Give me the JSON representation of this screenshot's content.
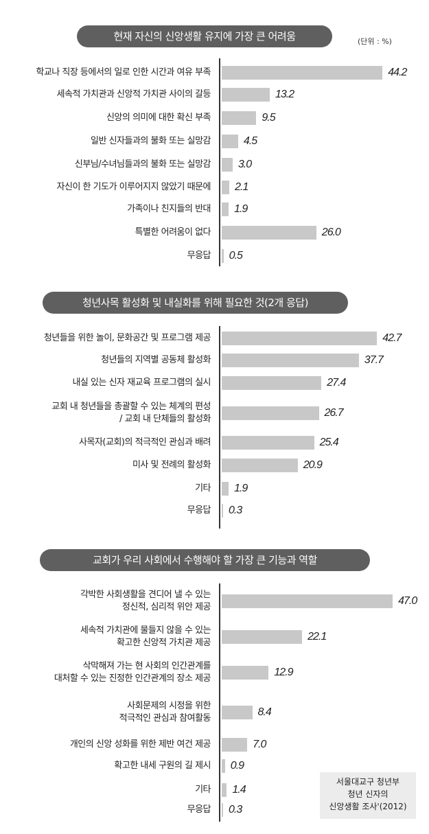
{
  "unit_label": "(단위 : %)",
  "source": [
    "서울대교구 청년부",
    "청년 신자의",
    "신앙생활 조사'(2012)"
  ],
  "chart_data": [
    {
      "type": "bar",
      "title": "현재 자신의 신앙생활 유지에 가장 큰 어려움",
      "categories": [
        [
          "학교나 직장 등에서의 일로 인한 시간과 여유 부족"
        ],
        [
          "세속적 가치관과 신앙적 가치관 사이의 갈등"
        ],
        [
          "신앙의 의미에 대한 확신 부족"
        ],
        [
          "일반 신자들과의 불화 또는 실망감"
        ],
        [
          "신부님/수녀님들과의 불화 또는 실망감"
        ],
        [
          "자신이 한 기도가 이루어지지 않았기 때문에"
        ],
        [
          "가족이나 친지들의 반대"
        ],
        [
          "특별한 어려움이 없다"
        ],
        [
          "무응답"
        ]
      ],
      "values": [
        44.2,
        13.2,
        9.5,
        4.5,
        3.0,
        2.1,
        1.9,
        26.0,
        0.5
      ],
      "value_labels": [
        "44.2",
        "13.2",
        "9.5",
        "4.5",
        "3.0",
        "2.1",
        "1.9",
        "26.0",
        "0.5"
      ]
    },
    {
      "type": "bar",
      "title": "청년사목 활성화 및 내실화를 위해 필요한 것(2개 응답)",
      "categories": [
        [
          "청년들을 위한 놀이, 문화공간 및 프로그램 제공"
        ],
        [
          "청년들의 지역별 공동체 활성화"
        ],
        [
          "내실 있는 신자 재교육 프로그램의 실시"
        ],
        [
          "교회 내 청년들을 총괄할 수 있는 체계의 편성",
          "/ 교회 내 단체들의 활성화"
        ],
        [
          "사목자(교회)의 적극적인 관심과 배려"
        ],
        [
          "미사 및 전례의 활성화"
        ],
        [
          "기타"
        ],
        [
          "무응답"
        ]
      ],
      "values": [
        42.7,
        37.7,
        27.4,
        26.7,
        25.4,
        20.9,
        1.9,
        0.3
      ],
      "value_labels": [
        "42.7",
        "37.7",
        "27.4",
        "26.7",
        "25.4",
        "20.9",
        "1.9",
        "0.3"
      ]
    },
    {
      "type": "bar",
      "title": "교회가 우리 사회에서 수행해야 할 가장 큰 기능과 역할",
      "categories": [
        [
          "각박한 사회생활을 견디어 낼 수 있는",
          "정신적, 심리적 위안 제공"
        ],
        [
          "세속적 가치관에  물들지 않을 수 있는",
          "확고한 신앙적 가치관 제공"
        ],
        [
          "삭막해져 가는 현 사회의 인간관계를",
          "대처할 수 있는 진정한 인간관계의 장소 제공"
        ],
        [
          "사회문제의 시정을 위한",
          "적극적인 관심과 참여활동"
        ],
        [
          "개인의 신앙 성화를 위한 제반 여건 제공"
        ],
        [
          "확고한 내세 구원의 길 제시"
        ],
        [
          "기타"
        ],
        [
          "무응답"
        ]
      ],
      "values": [
        47.0,
        22.1,
        12.9,
        8.4,
        7.0,
        0.9,
        1.4,
        0.3
      ],
      "value_labels": [
        "47.0",
        "22.1",
        "12.9",
        "8.4",
        "7.0",
        "0.9",
        "1.4",
        "0.3"
      ]
    }
  ]
}
